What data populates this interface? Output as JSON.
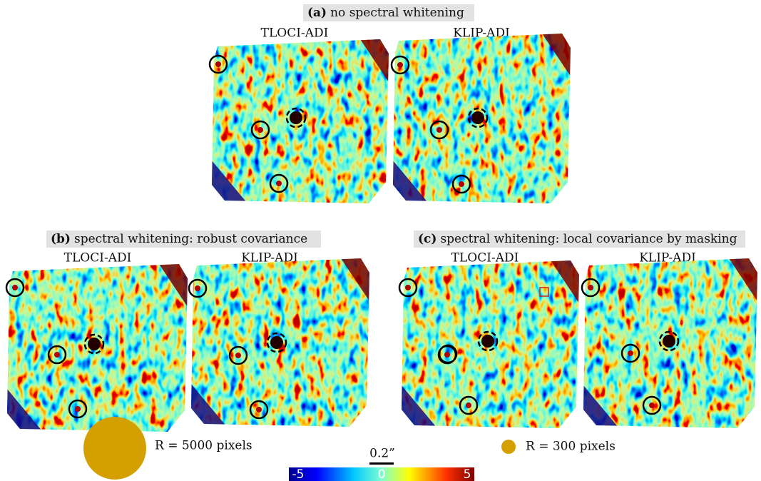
{
  "panels": [
    {
      "label": "(a)",
      "caption": "no spectral whitening",
      "images": [
        {
          "title": "TLOCI-ADI"
        },
        {
          "title": "KLIP-ADI"
        }
      ]
    },
    {
      "label": "(b)",
      "caption": "spectral whitening: robust covariance",
      "images": [
        {
          "title": "TLOCI-ADI"
        },
        {
          "title": "KLIP-ADI"
        }
      ]
    },
    {
      "label": "(c)",
      "caption": "spectral whitening: local covariance by masking",
      "images": [
        {
          "title": "TLOCI-ADI"
        },
        {
          "title": "KLIP-ADI"
        }
      ]
    }
  ],
  "legend": [
    {
      "text": "R = 5000 pixels"
    },
    {
      "text": "R = 300 pixels"
    }
  ],
  "scale_bar": "0.2”",
  "colorbar": {
    "labels": [
      "-5",
      "0",
      "5"
    ]
  }
}
